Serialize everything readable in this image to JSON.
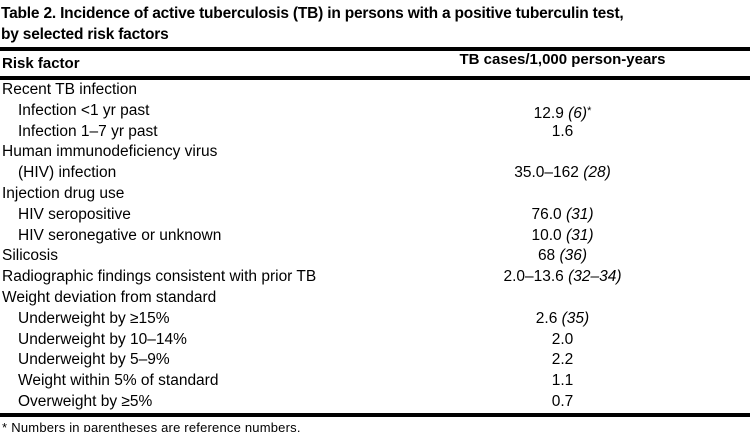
{
  "title": {
    "lines": [
      "Table 2. Incidence of active tuberculosis (TB) in persons with a positive tuberculin test,",
      "by selected risk factors"
    ]
  },
  "columns": {
    "risk_factor": "Risk factor",
    "tb_cases": "TB cases/1,000 person-years"
  },
  "rows": [
    {
      "label": "Recent TB infection",
      "indent": 0,
      "value": "",
      "ref": "",
      "footnote_marker": ""
    },
    {
      "label": "Infection <1 yr past",
      "indent": 1,
      "value": "12.9",
      "ref": "6",
      "footnote_marker": "*"
    },
    {
      "label": "Infection 1–7 yr past",
      "indent": 1,
      "value": "1.6",
      "ref": "",
      "footnote_marker": ""
    },
    {
      "label": "Human immunodeficiency virus",
      "indent": 0,
      "value": "",
      "ref": "",
      "footnote_marker": ""
    },
    {
      "label": "(HIV) infection",
      "indent": 1,
      "value": "35.0–162",
      "ref": "28",
      "footnote_marker": ""
    },
    {
      "label": "Injection drug use",
      "indent": 0,
      "value": "",
      "ref": "",
      "footnote_marker": ""
    },
    {
      "label": "HIV seropositive",
      "indent": 1,
      "value": "76.0",
      "ref": "31",
      "footnote_marker": ""
    },
    {
      "label": "HIV seronegative or unknown",
      "indent": 1,
      "value": "10.0",
      "ref": "31",
      "footnote_marker": ""
    },
    {
      "label": "Silicosis",
      "indent": 0,
      "value": "68",
      "ref": "36",
      "footnote_marker": ""
    },
    {
      "label": "Radiographic findings consistent with prior TB",
      "indent": 0,
      "value": "2.0–13.6",
      "ref": "32–34",
      "footnote_marker": ""
    },
    {
      "label": "Weight deviation from standard",
      "indent": 0,
      "value": "",
      "ref": "",
      "footnote_marker": ""
    },
    {
      "label": "Underweight by ≥15%",
      "indent": 1,
      "value": "2.6",
      "ref": "35",
      "footnote_marker": ""
    },
    {
      "label": "Underweight by 10–14%",
      "indent": 1,
      "value": "2.0",
      "ref": "",
      "footnote_marker": ""
    },
    {
      "label": "Underweight by 5–9%",
      "indent": 1,
      "value": "2.2",
      "ref": "",
      "footnote_marker": ""
    },
    {
      "label": "Weight within 5% of standard",
      "indent": 1,
      "value": "1.1",
      "ref": "",
      "footnote_marker": ""
    },
    {
      "label": "Overweight by ≥5%",
      "indent": 1,
      "value": "0.7",
      "ref": "",
      "footnote_marker": ""
    }
  ],
  "footnote": {
    "marker": "*",
    "text": "Numbers in parentheses are reference numbers."
  },
  "colors": {
    "text": "#000000",
    "background": "#ffffff",
    "rule": "#000000"
  }
}
